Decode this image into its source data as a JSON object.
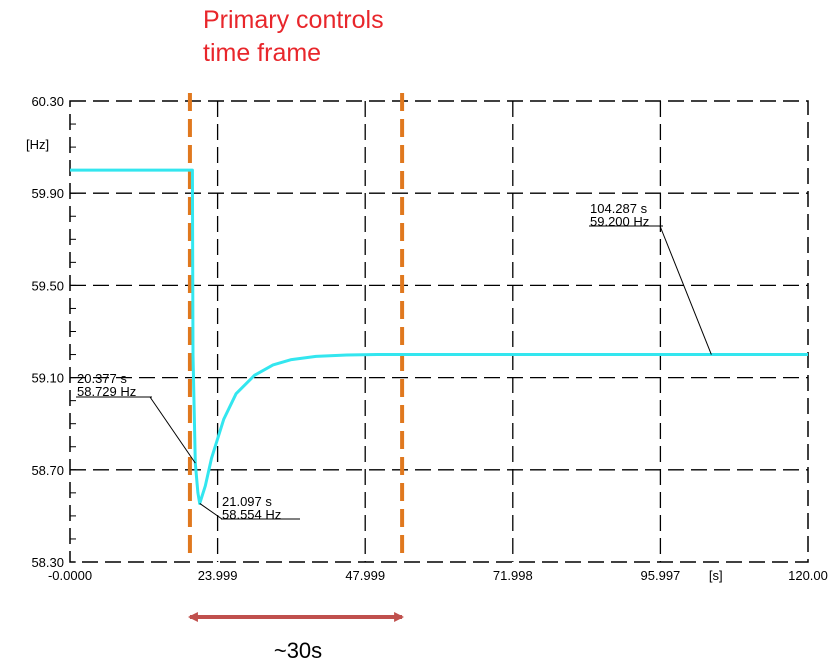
{
  "annotation_title": {
    "line1": "Primary controls",
    "line2": "time frame"
  },
  "span_label": "~30s",
  "colors": {
    "series": "#33e6ef",
    "window_lines": "#e0781e",
    "title_text": "#e8262b",
    "span_arrow": "#c0504d",
    "grid": "#000000"
  },
  "chart_data": {
    "type": "line",
    "title": "",
    "xlabel": "[s]",
    "ylabel": "[Hz]",
    "xlim": [
      0,
      120
    ],
    "ylim": [
      58.3,
      60.3
    ],
    "grid": true,
    "grid_style": "dashed",
    "x_ticks": [
      "-0.0000",
      "23.999",
      "47.999",
      "71.998",
      "95.997",
      "120.00"
    ],
    "y_ticks": [
      "60.30",
      "59.90",
      "59.50",
      "59.10",
      "58.70",
      "58.30"
    ],
    "series": [
      {
        "x": [
          0,
          19.9,
          20.0,
          20.377,
          20.8,
          21.097,
          22,
          23,
          25,
          27,
          30,
          33,
          36,
          40,
          45,
          50,
          55,
          60,
          70,
          80,
          90,
          104.287,
          120
        ],
        "y": [
          60.0,
          60.0,
          59.2,
          58.729,
          58.6,
          58.554,
          58.63,
          58.75,
          58.92,
          59.03,
          59.11,
          59.155,
          59.178,
          59.192,
          59.198,
          59.2,
          59.2,
          59.2,
          59.2,
          59.2,
          59.2,
          59.2,
          59.2
        ]
      }
    ],
    "vertical_markers": [
      19.5,
      54
    ],
    "annotations": [
      {
        "x": 104.287,
        "y": 59.2,
        "line1": "104.287 s",
        "line2": "59.200 Hz"
      },
      {
        "x": 20.377,
        "y": 58.729,
        "line1": "20.377 s",
        "line2": "58.729 Hz"
      },
      {
        "x": 21.097,
        "y": 58.554,
        "line1": "21.097 s",
        "line2": "58.554 Hz"
      }
    ],
    "span": {
      "from": 19.5,
      "to": 54
    }
  }
}
